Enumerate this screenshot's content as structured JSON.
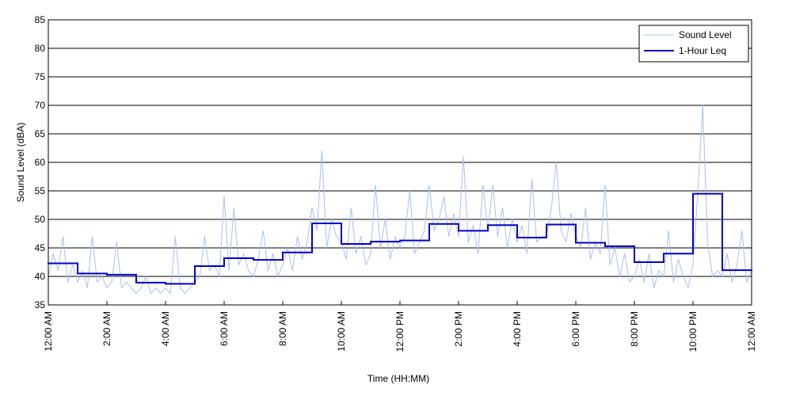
{
  "chart_data": {
    "type": "line",
    "xlabel": "Time (HH:MM)",
    "ylabel": "Sound Level (dBA)",
    "xlim": [
      0,
      1440
    ],
    "xticks": [
      {
        "value": 0,
        "label": "12:00 AM"
      },
      {
        "value": 120,
        "label": "2:00 AM"
      },
      {
        "value": 240,
        "label": "4:00 AM"
      },
      {
        "value": 360,
        "label": "6:00 AM"
      },
      {
        "value": 480,
        "label": "8:00 AM"
      },
      {
        "value": 600,
        "label": "10:00 AM"
      },
      {
        "value": 720,
        "label": "12:00 PM"
      },
      {
        "value": 840,
        "label": "2:00 PM"
      },
      {
        "value": 960,
        "label": "4:00 PM"
      },
      {
        "value": 1080,
        "label": "6:00 PM"
      },
      {
        "value": 1200,
        "label": "8:00 PM"
      },
      {
        "value": 1320,
        "label": "10:00 PM"
      },
      {
        "value": 1440,
        "label": "12:00 AM"
      }
    ],
    "ylim": [
      35,
      85
    ],
    "yticks": [
      35,
      40,
      45,
      50,
      55,
      60,
      65,
      70,
      75,
      80,
      85
    ],
    "grid": true,
    "legend": "upper-right",
    "series": [
      {
        "name": "Sound Level",
        "color": "#a8c0f0",
        "width": 1,
        "x": [
          0,
          10,
          20,
          30,
          40,
          50,
          60,
          70,
          80,
          90,
          100,
          110,
          120,
          130,
          140,
          150,
          160,
          170,
          180,
          190,
          200,
          210,
          220,
          230,
          240,
          250,
          260,
          270,
          280,
          290,
          300,
          310,
          320,
          330,
          340,
          350,
          360,
          370,
          380,
          390,
          400,
          410,
          420,
          430,
          440,
          450,
          460,
          470,
          480,
          490,
          500,
          510,
          520,
          530,
          540,
          550,
          560,
          570,
          580,
          590,
          600,
          610,
          620,
          630,
          640,
          650,
          660,
          670,
          680,
          690,
          700,
          710,
          720,
          730,
          740,
          750,
          760,
          770,
          780,
          790,
          800,
          810,
          820,
          830,
          840,
          850,
          860,
          870,
          880,
          890,
          900,
          910,
          920,
          930,
          940,
          950,
          960,
          970,
          980,
          990,
          1000,
          1010,
          1020,
          1030,
          1040,
          1050,
          1060,
          1070,
          1080,
          1090,
          1100,
          1110,
          1120,
          1130,
          1140,
          1150,
          1160,
          1170,
          1180,
          1190,
          1200,
          1210,
          1220,
          1230,
          1240,
          1250,
          1260,
          1270,
          1280,
          1290,
          1300,
          1310,
          1320,
          1330,
          1340,
          1350,
          1360,
          1370,
          1380,
          1390,
          1400,
          1410,
          1420,
          1430,
          1440
        ],
        "values": [
          40,
          44,
          41,
          47,
          39,
          42,
          39,
          41,
          38,
          47,
          39,
          40,
          38,
          39,
          46,
          38,
          39,
          38,
          37,
          38,
          40,
          37,
          38,
          37,
          38,
          37,
          47,
          38,
          37,
          38,
          39,
          40,
          47,
          41,
          42,
          40,
          54,
          41,
          52,
          42,
          44,
          41,
          40,
          43,
          48,
          41,
          44,
          40,
          42,
          45,
          41,
          47,
          43,
          46,
          52,
          48,
          62,
          45,
          50,
          47,
          46,
          43,
          52,
          44,
          47,
          42,
          44,
          56,
          45,
          50,
          43,
          47,
          45,
          47,
          55,
          44,
          46,
          48,
          56,
          48,
          50,
          54,
          47,
          51,
          47,
          61,
          46,
          49,
          44,
          56,
          48,
          56,
          47,
          52,
          45,
          50,
          46,
          49,
          44,
          57,
          46,
          47,
          47,
          52,
          60,
          48,
          46,
          51,
          47,
          45,
          52,
          43,
          46,
          44,
          56,
          42,
          45,
          40,
          44,
          39,
          40,
          43,
          39,
          44,
          38,
          41,
          40,
          48,
          39,
          43,
          40,
          38,
          42,
          55,
          70,
          46,
          40,
          41,
          40,
          44,
          39,
          42,
          48,
          39,
          41
        ]
      },
      {
        "name": "1-Hour Leq",
        "color": "#0000cc",
        "width": 2,
        "step": "post",
        "x": [
          0,
          60,
          120,
          180,
          240,
          300,
          360,
          420,
          480,
          540,
          600,
          660,
          720,
          780,
          840,
          900,
          960,
          1020,
          1080,
          1140,
          1200,
          1260,
          1320,
          1380
        ],
        "values": [
          42.3,
          40.5,
          40.3,
          38.9,
          38.7,
          41.8,
          43.2,
          42.9,
          44.2,
          49.3,
          45.7,
          46.1,
          46.3,
          49.2,
          48.0,
          49.0,
          46.8,
          49.1,
          45.9,
          45.3,
          42.5,
          44.0,
          54.5,
          41.1
        ]
      }
    ]
  }
}
